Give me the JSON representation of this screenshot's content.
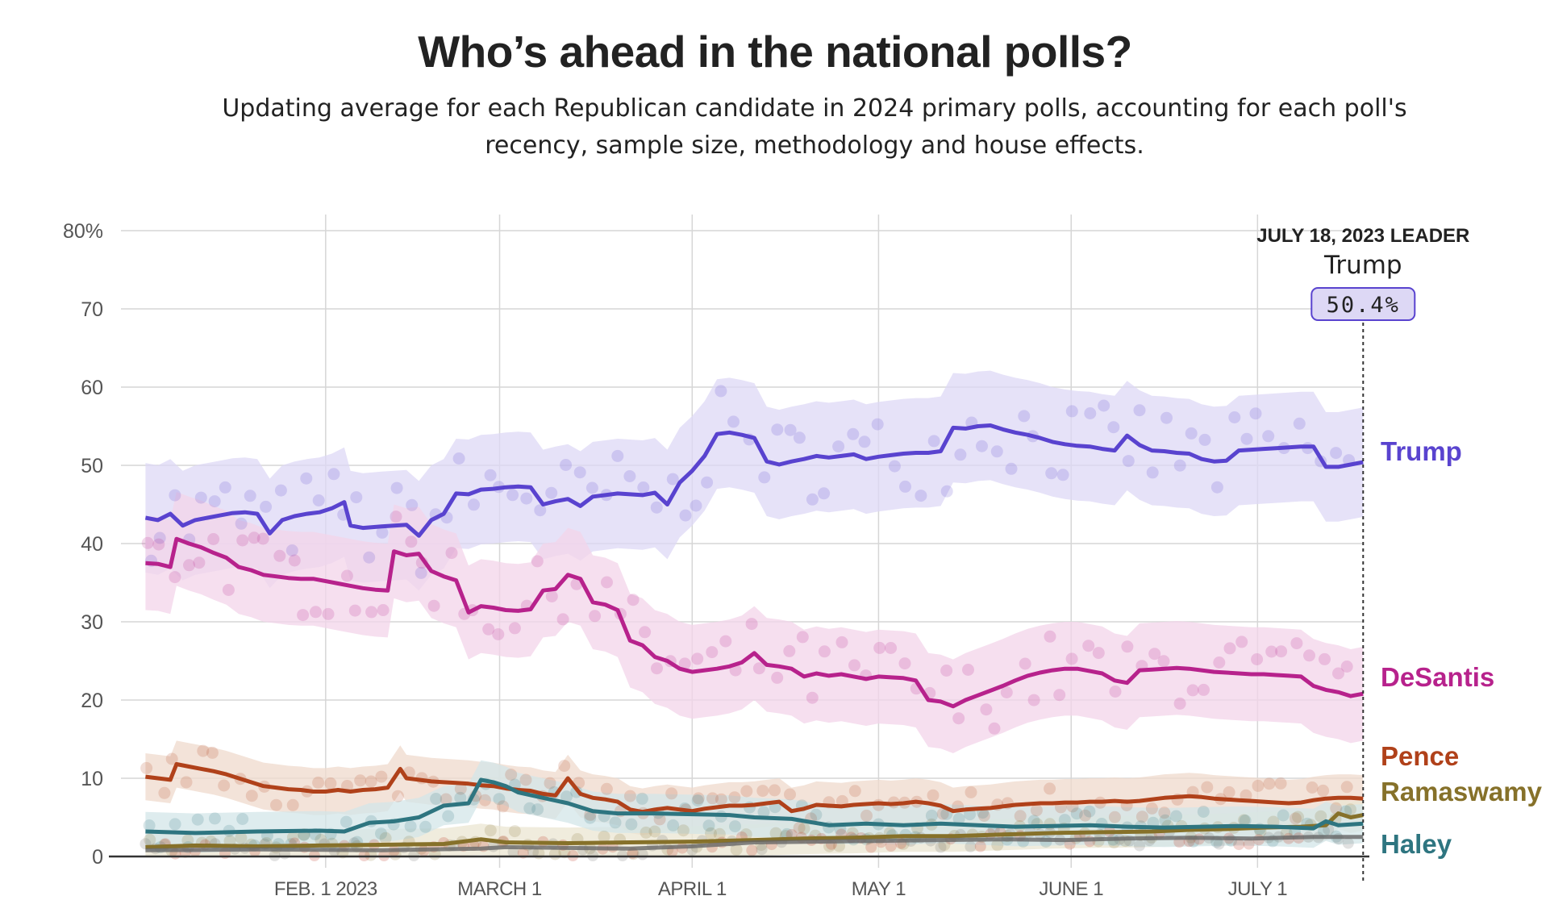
{
  "page": {
    "title": "Who’s ahead in the national polls?",
    "subtitle": "Updating average for each Republican candidate in 2024 primary polls, accounting for each poll's recency, sample size, methodology and house effects."
  },
  "chart_data": {
    "type": "line",
    "title": "Who’s ahead in the national polls?",
    "xlabel": "",
    "ylabel": "",
    "x_unit": "days since Jan. 1, 2023",
    "xlim": [
      0,
      199
    ],
    "ylim": [
      0,
      80
    ],
    "y_ticks": [
      0,
      10,
      20,
      30,
      40,
      50,
      60,
      70,
      80
    ],
    "y_tick_labels": [
      "0",
      "10",
      "20",
      "30",
      "40",
      "50",
      "60",
      "70",
      "80%"
    ],
    "x_ticks": [
      {
        "day": 31,
        "label": "FEB. 1 2023"
      },
      {
        "day": 59,
        "label": "MARCH 1"
      },
      {
        "day": 90,
        "label": "APRIL 1"
      },
      {
        "day": 120,
        "label": "MAY 1"
      },
      {
        "day": 151,
        "label": "JUNE 1"
      },
      {
        "day": 181,
        "label": "JULY 1"
      }
    ],
    "grid": true,
    "leader": {
      "date_label": "JULY 18, 2023 LEADER",
      "name": "Trump",
      "value_label": "50.4%",
      "day": 198
    },
    "series": [
      {
        "name": "Trump",
        "label": "Trump",
        "color": "#5943cf",
        "band_color": "#ddd8f5",
        "days": [
          2,
          4,
          6,
          8,
          10,
          12,
          14,
          16,
          18,
          20,
          22,
          24,
          26,
          28,
          30,
          32,
          34,
          35,
          37,
          40,
          44,
          46,
          48,
          50,
          52,
          54,
          56,
          58,
          60,
          62,
          64,
          66,
          68,
          70,
          72,
          74,
          76,
          78,
          80,
          82,
          84,
          86,
          88,
          90,
          92,
          94,
          96,
          98,
          100,
          102,
          104,
          106,
          108,
          110,
          112,
          114,
          116,
          118,
          120,
          122,
          124,
          126,
          128,
          130,
          132,
          134,
          136,
          138,
          140,
          142,
          144,
          146,
          148,
          150,
          152,
          154,
          156,
          158,
          160,
          162,
          164,
          166,
          168,
          170,
          172,
          174,
          176,
          178,
          180,
          182,
          184,
          186,
          188,
          190,
          192,
          194,
          196,
          198
        ],
        "values": [
          43.3,
          43.0,
          43.8,
          42.3,
          43.0,
          43.3,
          43.6,
          43.9,
          44.0,
          43.8,
          41.3,
          43.0,
          43.5,
          43.8,
          44.0,
          44.5,
          45.3,
          42.3,
          42.0,
          42.2,
          42.4,
          41.0,
          43.0,
          43.8,
          46.4,
          46.3,
          46.9,
          47.0,
          47.2,
          47.3,
          47.2,
          45.0,
          45.4,
          45.7,
          44.8,
          46.0,
          46.2,
          46.4,
          46.3,
          46.2,
          46.5,
          45.0,
          47.8,
          49.3,
          51.2,
          54.0,
          54.2,
          53.9,
          53.5,
          50.5,
          50.1,
          50.5,
          50.8,
          51.2,
          51.0,
          51.2,
          51.4,
          50.8,
          51.1,
          51.3,
          51.5,
          51.6,
          51.6,
          51.8,
          54.8,
          54.7,
          55.0,
          55.1,
          54.6,
          54.2,
          53.9,
          53.5,
          53.0,
          52.7,
          52.5,
          52.4,
          52.1,
          51.9,
          53.8,
          52.6,
          51.9,
          51.8,
          51.6,
          51.5,
          50.8,
          50.5,
          50.6,
          51.9,
          52.0,
          52.1,
          52.2,
          52.3,
          52.4,
          52.4,
          49.8,
          49.8,
          50.1,
          50.4
        ]
      },
      {
        "name": "DeSantis",
        "label": "DeSantis",
        "color": "#b7228c",
        "band_color": "#f3d4e9",
        "days": [
          2,
          4,
          6,
          7,
          9,
          11,
          13,
          15,
          17,
          19,
          21,
          23,
          25,
          27,
          29,
          31,
          33,
          35,
          37,
          39,
          41,
          42,
          44,
          46,
          48,
          50,
          52,
          54,
          56,
          58,
          60,
          62,
          64,
          66,
          68,
          70,
          72,
          74,
          76,
          78,
          80,
          82,
          84,
          86,
          88,
          90,
          92,
          94,
          96,
          98,
          100,
          102,
          104,
          106,
          108,
          110,
          112,
          114,
          116,
          118,
          120,
          122,
          124,
          126,
          128,
          130,
          132,
          134,
          136,
          138,
          140,
          142,
          144,
          146,
          148,
          150,
          152,
          154,
          156,
          158,
          160,
          162,
          164,
          166,
          168,
          170,
          172,
          174,
          176,
          178,
          180,
          182,
          184,
          186,
          188,
          190,
          192,
          194,
          196,
          198
        ],
        "values": [
          37.5,
          37.4,
          37.0,
          40.6,
          40.0,
          39.5,
          38.8,
          38.2,
          37.0,
          36.6,
          36.0,
          35.8,
          35.6,
          35.5,
          35.5,
          35.2,
          34.9,
          34.6,
          34.3,
          34.1,
          34.0,
          39.0,
          38.5,
          38.7,
          36.5,
          35.8,
          35.3,
          31.2,
          32.0,
          31.8,
          31.5,
          31.4,
          31.6,
          34.0,
          34.2,
          36.0,
          35.5,
          32.5,
          32.2,
          31.5,
          27.6,
          27.0,
          25.5,
          25.0,
          24.0,
          23.6,
          23.8,
          24.0,
          24.3,
          24.8,
          26.0,
          24.5,
          24.3,
          24.0,
          23.0,
          23.4,
          23.1,
          23.3,
          23.0,
          22.7,
          23.0,
          22.9,
          22.8,
          22.5,
          20.0,
          19.8,
          19.2,
          20.0,
          20.6,
          21.2,
          21.8,
          22.5,
          23.1,
          23.5,
          23.8,
          24.0,
          24.0,
          23.7,
          23.4,
          22.5,
          22.2,
          23.8,
          23.9,
          24.0,
          24.1,
          24.0,
          23.8,
          23.6,
          23.5,
          23.4,
          23.3,
          23.3,
          23.2,
          23.1,
          23.0,
          21.8,
          21.3,
          21.0,
          20.5,
          20.8
        ]
      },
      {
        "name": "Pence",
        "label": "Pence",
        "color": "#b0411a",
        "band_color": "#efd9cc",
        "days": [
          2,
          4,
          6,
          7,
          9,
          11,
          13,
          15,
          17,
          19,
          21,
          23,
          25,
          27,
          29,
          31,
          33,
          35,
          37,
          39,
          41,
          43,
          44,
          46,
          48,
          50,
          52,
          54,
          56,
          58,
          60,
          62,
          64,
          66,
          68,
          70,
          72,
          74,
          76,
          78,
          80,
          82,
          84,
          86,
          88,
          90,
          92,
          94,
          96,
          98,
          100,
          102,
          104,
          106,
          108,
          110,
          112,
          114,
          116,
          118,
          120,
          122,
          124,
          126,
          128,
          130,
          132,
          134,
          136,
          138,
          140,
          142,
          144,
          146,
          148,
          150,
          152,
          154,
          156,
          158,
          160,
          162,
          164,
          166,
          168,
          170,
          172,
          174,
          176,
          178,
          180,
          182,
          184,
          186,
          188,
          190,
          192,
          194,
          196,
          198
        ],
        "values": [
          10.2,
          10.0,
          9.8,
          11.8,
          11.5,
          11.2,
          10.9,
          10.5,
          10.0,
          9.5,
          9.0,
          8.8,
          8.6,
          8.5,
          8.3,
          8.3,
          8.5,
          8.3,
          8.5,
          8.6,
          8.8,
          11.2,
          10.0,
          9.8,
          9.6,
          9.5,
          9.4,
          9.3,
          9.1,
          9.0,
          8.7,
          8.5,
          8.4,
          8.0,
          7.8,
          10.0,
          8.0,
          7.5,
          7.3,
          7.0,
          6.0,
          5.7,
          6.0,
          6.2,
          6.0,
          5.8,
          6.1,
          6.3,
          6.5,
          6.5,
          6.6,
          6.8,
          7.0,
          5.8,
          6.1,
          6.6,
          6.5,
          6.4,
          6.6,
          6.7,
          6.8,
          6.7,
          6.8,
          7.0,
          6.8,
          6.5,
          5.8,
          6.0,
          6.1,
          6.2,
          6.4,
          6.6,
          6.7,
          6.8,
          6.8,
          6.9,
          6.9,
          7.0,
          7.0,
          7.1,
          7.0,
          7.1,
          7.3,
          7.5,
          7.6,
          7.7,
          7.6,
          7.4,
          7.3,
          7.2,
          7.1,
          7.0,
          6.9,
          6.8,
          6.9,
          7.2,
          7.4,
          7.5,
          7.5,
          7.4
        ]
      },
      {
        "name": "Ramaswamy",
        "label": "Ramaswamy",
        "color": "#86712a",
        "band_color": "#ebe6d2",
        "days": [
          2,
          10,
          20,
          30,
          40,
          50,
          56,
          60,
          70,
          80,
          90,
          100,
          108,
          116,
          124,
          132,
          140,
          148,
          156,
          164,
          170,
          176,
          182,
          188,
          192,
          194,
          196,
          198
        ],
        "values": [
          1.2,
          1.4,
          1.3,
          1.4,
          1.5,
          1.6,
          2.2,
          1.8,
          1.7,
          1.8,
          1.9,
          2.1,
          2.3,
          2.4,
          2.6,
          2.6,
          2.8,
          3.0,
          3.1,
          3.2,
          3.4,
          3.5,
          3.7,
          3.8,
          4.0,
          5.5,
          5.0,
          5.3
        ]
      },
      {
        "name": "Haley",
        "label": "Haley",
        "color": "#2e7580",
        "band_color": "#d3e5e8",
        "days": [
          2,
          10,
          20,
          30,
          34,
          38,
          42,
          46,
          50,
          54,
          56,
          58,
          60,
          62,
          66,
          70,
          74,
          78,
          84,
          90,
          96,
          100,
          106,
          112,
          118,
          124,
          130,
          136,
          142,
          148,
          154,
          160,
          166,
          172,
          178,
          184,
          190,
          192,
          194,
          198
        ],
        "values": [
          3.2,
          3.0,
          3.2,
          3.3,
          3.2,
          4.3,
          4.5,
          5.0,
          6.5,
          6.8,
          9.8,
          9.5,
          9.0,
          8.2,
          7.5,
          6.8,
          5.8,
          5.5,
          5.5,
          5.4,
          5.3,
          5.0,
          4.8,
          4.0,
          4.2,
          4.0,
          4.2,
          4.0,
          3.8,
          3.9,
          4.0,
          3.8,
          3.7,
          3.8,
          3.9,
          3.8,
          3.6,
          4.5,
          4.0,
          4.2
        ]
      }
    ],
    "other_candidates": {
      "color": "#666666",
      "days": [
        2,
        20,
        40,
        56,
        60,
        80,
        90,
        100,
        110,
        120,
        130,
        140,
        150,
        160,
        170,
        180,
        190,
        198
      ],
      "values": [
        0.8,
        0.9,
        0.8,
        1.0,
        1.2,
        1.0,
        1.3,
        1.8,
        1.9,
        2.0,
        2.1,
        2.2,
        2.1,
        2.3,
        2.4,
        2.3,
        2.5,
        2.5
      ]
    }
  }
}
